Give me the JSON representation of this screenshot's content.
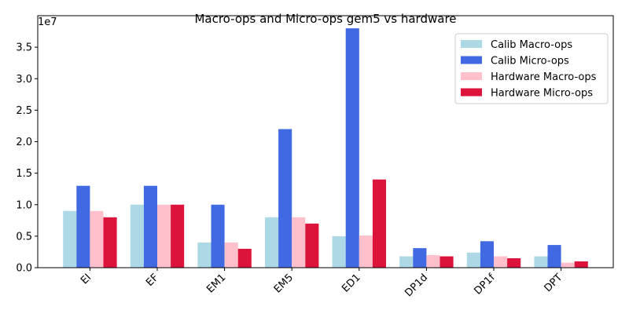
{
  "chart_data": {
    "type": "bar",
    "title": "Macro-ops and Micro-ops gem5 vs hardware",
    "xlabel": "",
    "ylabel": "",
    "y_scale_label": "1e7",
    "ylim": [
      0,
      4.0
    ],
    "yticks": [
      0.0,
      0.5,
      1.0,
      1.5,
      2.0,
      2.5,
      3.0,
      3.5
    ],
    "ytick_labels": [
      "0.0",
      "0.5",
      "1.0",
      "1.5",
      "2.0",
      "2.5",
      "3.0",
      "3.5"
    ],
    "categories": [
      "EI",
      "EF",
      "EM1",
      "EM5",
      "ED1",
      "DP1d",
      "DP1f",
      "DPT"
    ],
    "series": [
      {
        "name": "Calib Macro-ops",
        "color": "#add8e6",
        "values": [
          0.9,
          1.0,
          0.4,
          0.8,
          0.5,
          0.18,
          0.24,
          0.18
        ]
      },
      {
        "name": "Calib Micro-ops",
        "color": "#4169e1",
        "values": [
          1.3,
          1.3,
          1.0,
          2.2,
          3.8,
          0.31,
          0.42,
          0.36
        ]
      },
      {
        "name": "Hardware Macro-ops",
        "color": "#ffc0cb",
        "values": [
          0.9,
          1.0,
          0.4,
          0.8,
          0.51,
          0.2,
          0.18,
          0.08
        ]
      },
      {
        "name": "Hardware Micro-ops",
        "color": "#dc143c",
        "values": [
          0.8,
          1.0,
          0.3,
          0.7,
          1.4,
          0.18,
          0.15,
          0.1
        ]
      }
    ],
    "legend": "top-right",
    "grid": false
  }
}
